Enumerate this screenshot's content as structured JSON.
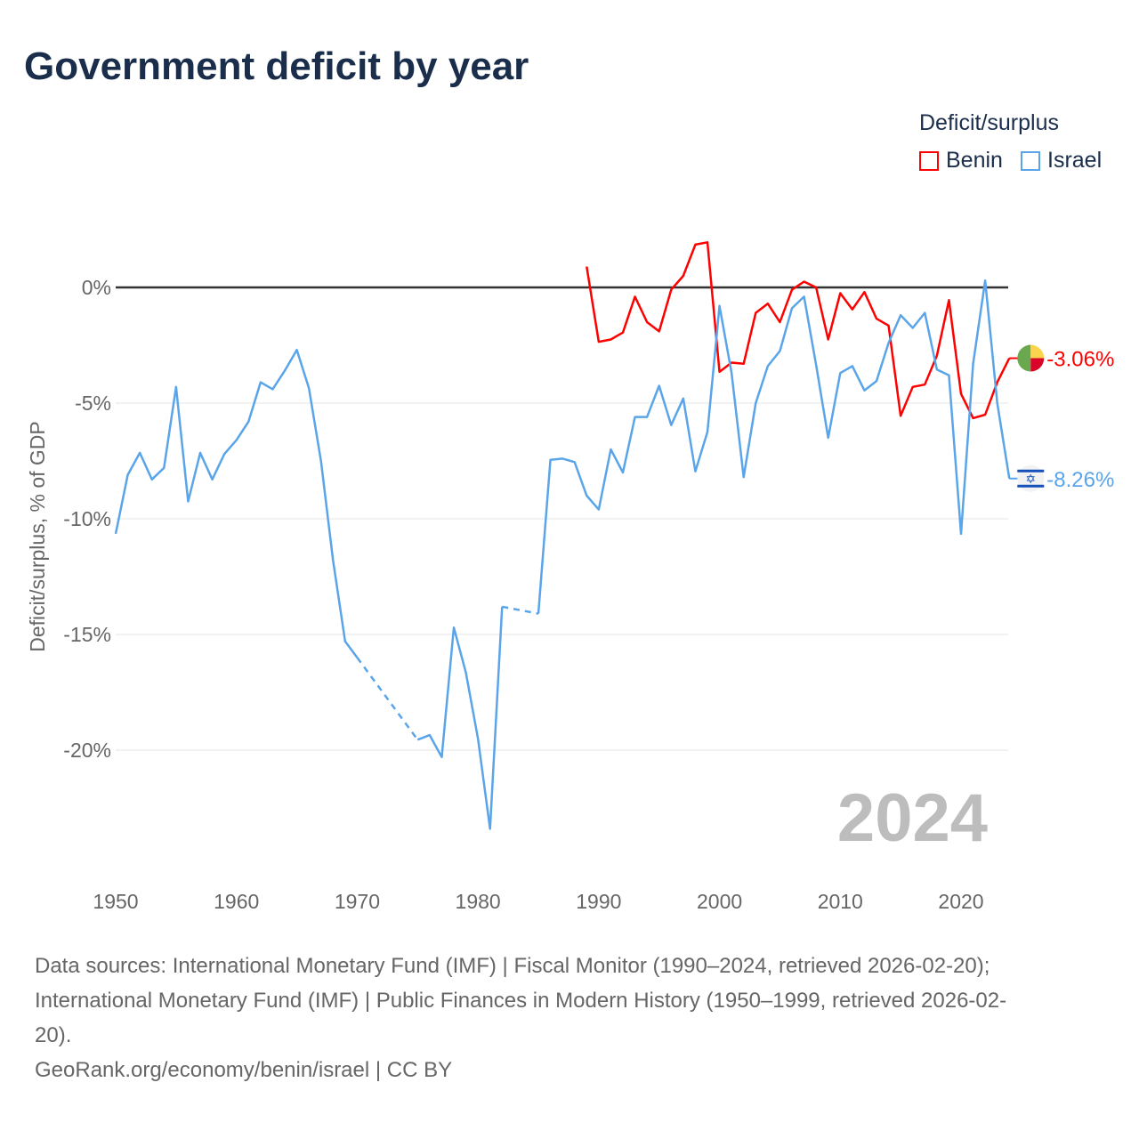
{
  "title": "Government deficit by year",
  "legend": {
    "title": "Deficit/surplus",
    "items": [
      {
        "label": "Benin",
        "color": "#ff0000"
      },
      {
        "label": "Israel",
        "color": "#5aa5ea"
      }
    ]
  },
  "year_watermark": "2024",
  "sources": {
    "line1": "Data sources: International Monetary Fund (IMF) | Fiscal Monitor (1990–2024, retrieved 2026-02-20);",
    "line2": "International Monetary Fund (IMF) | Public Finances in Modern History (1950–1999, retrieved 2026-02-",
    "line3": "20).",
    "line4": "GeoRank.org/economy/benin/israel | CC BY"
  },
  "chart_data": {
    "type": "line",
    "title": "Government deficit by year",
    "xlabel": "",
    "ylabel": "Deficit/surplus, % of GDP",
    "xlim": [
      1950,
      2024
    ],
    "ylim": [
      -25,
      3
    ],
    "x_ticks": [
      1950,
      1960,
      1970,
      1980,
      1990,
      2000,
      2010,
      2020
    ],
    "y_ticks": [
      0,
      -5,
      -10,
      -15,
      -20
    ],
    "y_tick_labels": [
      "0%",
      "-5%",
      "-10%",
      "-15%",
      "-20%"
    ],
    "legend_position": "top-right",
    "series": [
      {
        "name": "Benin",
        "color": "#ff0000",
        "end_label": "-3.06%",
        "start_year": 1989,
        "values": [
          0.9,
          -2.35,
          -2.25,
          -1.95,
          -0.4,
          -1.5,
          -1.9,
          -0.1,
          0.5,
          1.85,
          1.95,
          -3.65,
          -3.25,
          -3.3,
          -1.1,
          -0.7,
          -1.5,
          -0.1,
          0.25,
          0.0,
          -2.25,
          -0.25,
          -0.95,
          -0.2,
          -1.35,
          -1.65,
          -5.55,
          -4.3,
          -4.2,
          -2.95,
          -0.55,
          -4.6,
          -5.65,
          -5.5,
          -4.1,
          -3.06
        ]
      },
      {
        "name": "Israel",
        "color": "#5aa5ea",
        "end_label": "-8.26%",
        "start_year": 1950,
        "values": [
          -10.65,
          -8.1,
          -7.15,
          -8.3,
          -7.8,
          -4.3,
          -9.25,
          -7.15,
          -8.3,
          -7.2,
          -6.6,
          -5.8,
          -4.1,
          -4.4,
          -3.6,
          -2.7,
          -4.35,
          -7.5,
          -11.8,
          -15.3,
          -16.0,
          null,
          null,
          null,
          null,
          -19.55,
          -19.35,
          -20.3,
          -14.7,
          -16.65,
          -19.5,
          -23.4,
          -13.8,
          null,
          null,
          -14.1,
          -7.45,
          -7.4,
          -7.55,
          -9.0,
          -9.6,
          -7.0,
          -8.0,
          -5.6,
          -5.6,
          -4.25,
          -5.95,
          -4.8,
          -7.95,
          -6.25,
          -0.8,
          -3.7,
          -8.2,
          -5.0,
          -3.4,
          -2.75,
          -0.9,
          -0.4,
          -3.35,
          -6.5,
          -3.7,
          -3.4,
          -4.45,
          -4.05,
          -2.4,
          -1.2,
          -1.75,
          -1.1,
          -3.55,
          -3.8,
          -10.65,
          -3.3,
          0.3,
          -5.0,
          -8.26
        ]
      }
    ]
  }
}
